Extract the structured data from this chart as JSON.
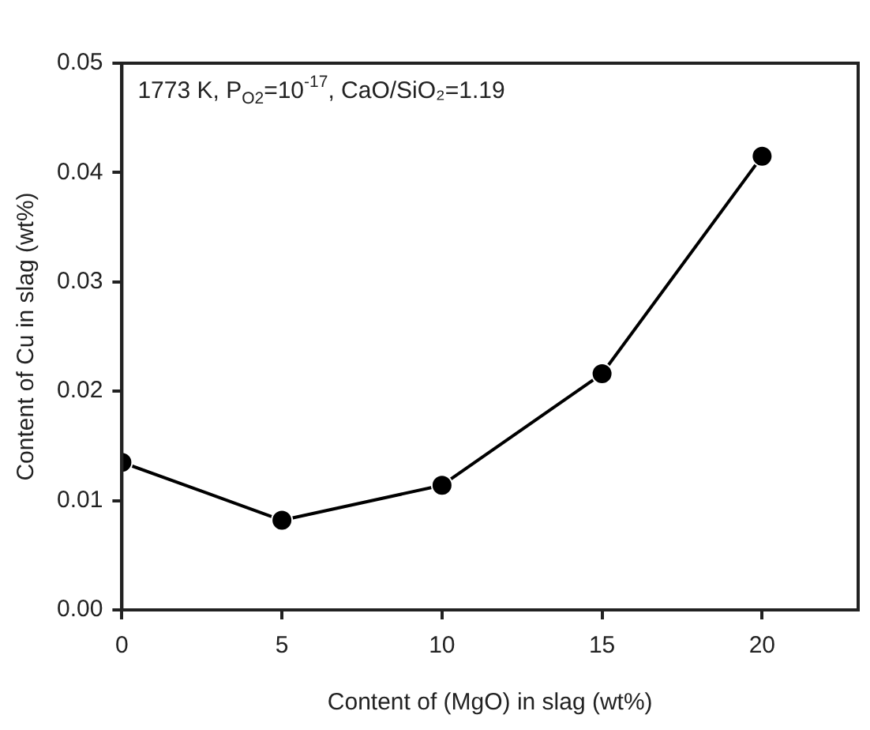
{
  "chart_data": {
    "type": "line",
    "xlabel": "Content of (MgO) in slag (wt%)",
    "ylabel": "Content of Cu in slag (wt%)",
    "annotations": [
      "1773 K, P$_{O2}$=10$^{-17}$, CaO/SiO₂=1.19"
    ],
    "x": [
      0,
      5,
      10,
      15,
      20
    ],
    "series": [
      {
        "color": "#000000",
        "values": [
          0.0135,
          0.0082,
          0.0114,
          0.0216,
          0.0415
        ]
      }
    ],
    "xlim": [
      0,
      23
    ],
    "xticks": [
      0,
      5,
      10,
      15,
      20
    ],
    "ylim": [
      0,
      0.05
    ],
    "yticks": [
      {
        "value": 0,
        "label": "0.00"
      },
      {
        "value": 0.01,
        "label": "0.01"
      },
      {
        "value": 0.02,
        "label": "0.02"
      },
      {
        "value": 0.03,
        "label": "0.03"
      },
      {
        "value": 0.04,
        "label": "0.04"
      },
      {
        "value": 0.05,
        "label": "0.05"
      }
    ],
    "grid": false,
    "legend": false,
    "marker": "circle",
    "line_style": "solid"
  }
}
